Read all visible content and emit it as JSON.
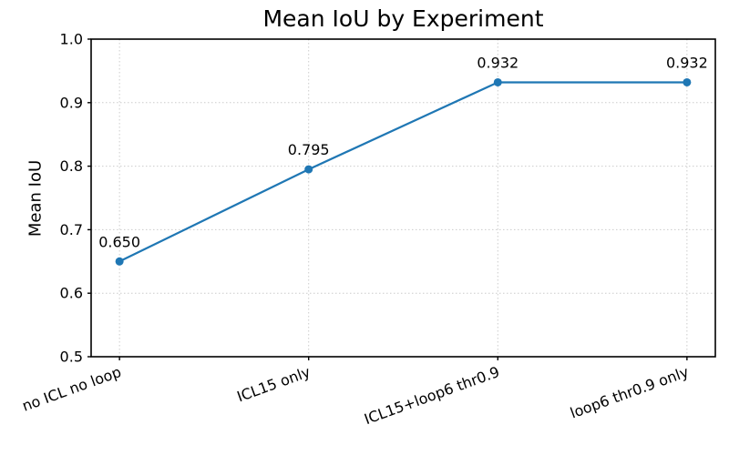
{
  "chart_data": {
    "type": "line",
    "title": "Mean IoU by Experiment",
    "xlabel": "",
    "ylabel": "Mean IoU",
    "categories": [
      "no ICL no loop",
      "ICL15 only",
      "ICL15+loop6 thr0.9",
      "loop6 thr0.9 only"
    ],
    "values": [
      0.65,
      0.795,
      0.932,
      0.932
    ],
    "point_labels": [
      "0.650",
      "0.795",
      "0.932",
      "0.932"
    ],
    "ylim": [
      0.5,
      1.0
    ],
    "yticks": [
      0.5,
      0.6,
      0.7,
      0.8,
      0.9,
      1.0
    ],
    "ytick_labels": [
      "0.5",
      "0.6",
      "0.7",
      "0.8",
      "0.9",
      "1.0"
    ],
    "x_tick_rotation_deg": 20,
    "grid": true,
    "grid_style": "dotted",
    "legend": "none",
    "line_color": "#1f77b4",
    "marker_color": "#1f77b4",
    "grid_color": "#cccccc",
    "spine_color": "#000000",
    "text_color": "#000000",
    "background_color": "#ffffff"
  }
}
